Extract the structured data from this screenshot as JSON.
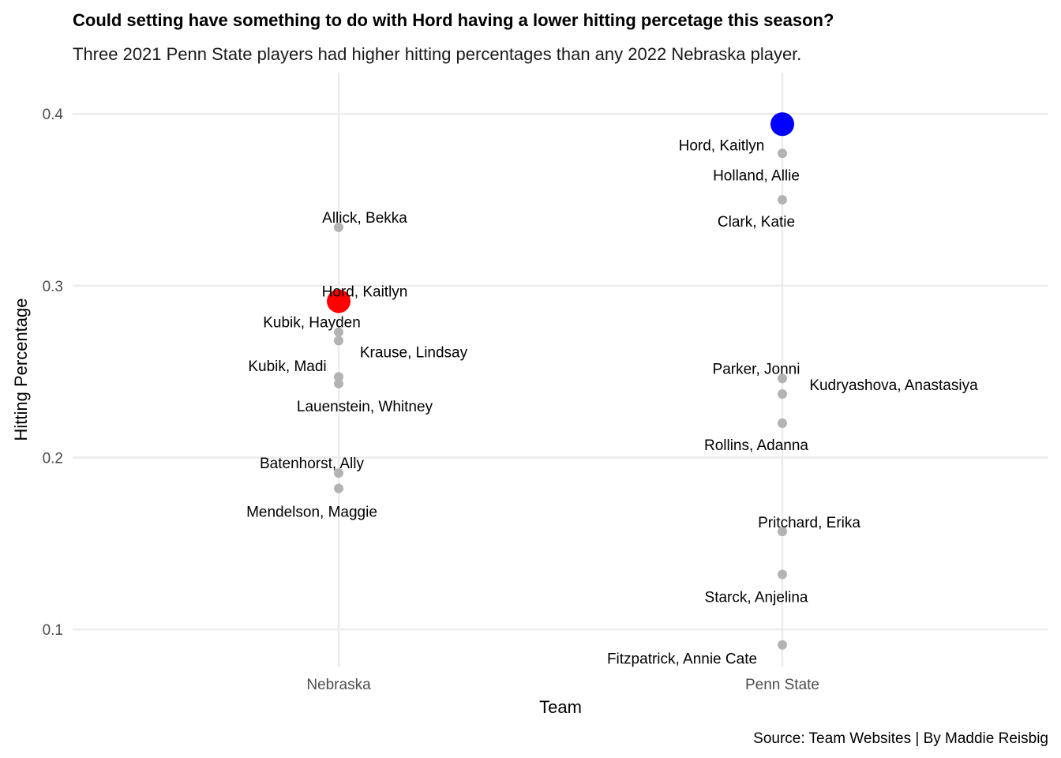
{
  "chart_data": {
    "type": "scatter",
    "title": "Could setting have something to do with Hord having a lower hitting percetage this season?",
    "subtitle": "Three 2021 Penn State players had higher hitting percentages than any 2022 Nebraska player.",
    "caption": "Source: Team Websites | By Maddie Reisbig",
    "xlabel": "Team",
    "ylabel": "Hitting Percentage",
    "categories": [
      "Nebraska",
      "Penn State"
    ],
    "ylim": [
      0.078,
      0.424
    ],
    "yticks": [
      "0.1",
      "0.2",
      "0.3",
      "0.4"
    ],
    "ytick_values": [
      0.1,
      0.2,
      0.3,
      0.4
    ],
    "grid": true,
    "colors": {
      "point": "#b3b3b3",
      "highlight_nebraska": "#ff0000",
      "highlight_penn_state": "#0000ff",
      "grid": "#ebebeb"
    },
    "series": [
      {
        "category": "Nebraska",
        "points": [
          {
            "value": 0.334,
            "label": "Allick, Bekka"
          },
          {
            "value": 0.273,
            "label": "Kubik, Hayden"
          },
          {
            "value": 0.268,
            "label": "Krause, Lindsay"
          },
          {
            "value": 0.247,
            "label": "Kubik, Madi"
          },
          {
            "value": 0.243,
            "label": "Lauenstein, Whitney"
          },
          {
            "value": 0.191,
            "label": "Batenhorst, Ally"
          },
          {
            "value": 0.182,
            "label": "Mendelson, Maggie"
          }
        ],
        "highlight": {
          "value": 0.291,
          "label": "Hord, Kaitlyn"
        }
      },
      {
        "category": "Penn State",
        "points": [
          {
            "value": 0.377,
            "label": "Holland, Allie"
          },
          {
            "value": 0.35,
            "label": "Clark, Katie"
          },
          {
            "value": 0.246,
            "label": "Parker, Jonni"
          },
          {
            "value": 0.237,
            "label": ""
          },
          {
            "value": 0.22,
            "label": "Kudryashova, Anastasiya"
          },
          {
            "value": 0.157,
            "label": "Rollins, Adanna"
          },
          {
            "value": 0.132,
            "label": "Pritchard, Erika"
          },
          {
            "value": 0.091,
            "label": "Starck, Anjelina"
          }
        ],
        "highlight": {
          "value": 0.394,
          "label": "Hord, Kaitlyn"
        },
        "extra_labels": [
          "Fitzpatrick, Annie Cate"
        ]
      }
    ]
  }
}
